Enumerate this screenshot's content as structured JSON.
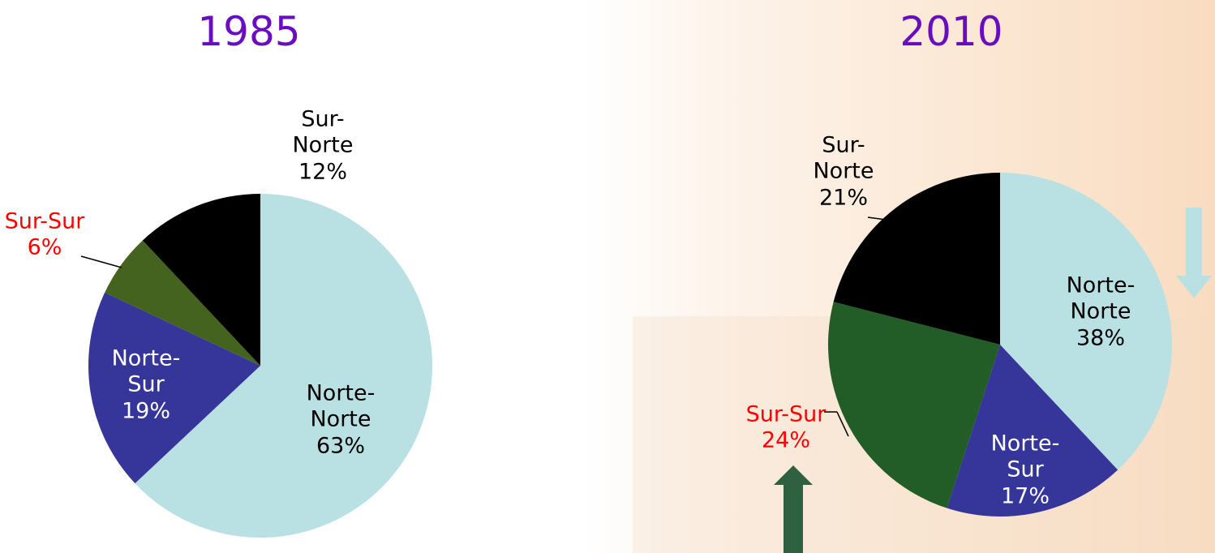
{
  "chart_data": [
    {
      "type": "pie",
      "title": "1985",
      "categories": [
        "Norte-Norte",
        "Norte-Sur",
        "Sur-Sur",
        "Sur-Norte"
      ],
      "values": [
        63,
        19,
        6,
        12
      ],
      "value_labels": [
        "63%",
        "19%",
        "6%",
        "12%"
      ],
      "colors": [
        "#b9e0e3",
        "#35359a",
        "#43631f",
        "#000000"
      ],
      "label_colors": [
        "#000000",
        "#ffffff",
        "#ff0000",
        "#000000"
      ]
    },
    {
      "type": "pie",
      "title": "2010",
      "categories": [
        "Norte-Norte",
        "Norte-Sur",
        "Sur-Sur",
        "Sur-Norte"
      ],
      "values": [
        38,
        17,
        24,
        21
      ],
      "value_labels": [
        "38%",
        "17%",
        "24%",
        "21%"
      ],
      "colors": [
        "#b9e0e3",
        "#35359a",
        "#225d28",
        "#000000"
      ],
      "label_colors": [
        "#000000",
        "#ffffff",
        "#ff0000",
        "#000000"
      ]
    }
  ]
}
